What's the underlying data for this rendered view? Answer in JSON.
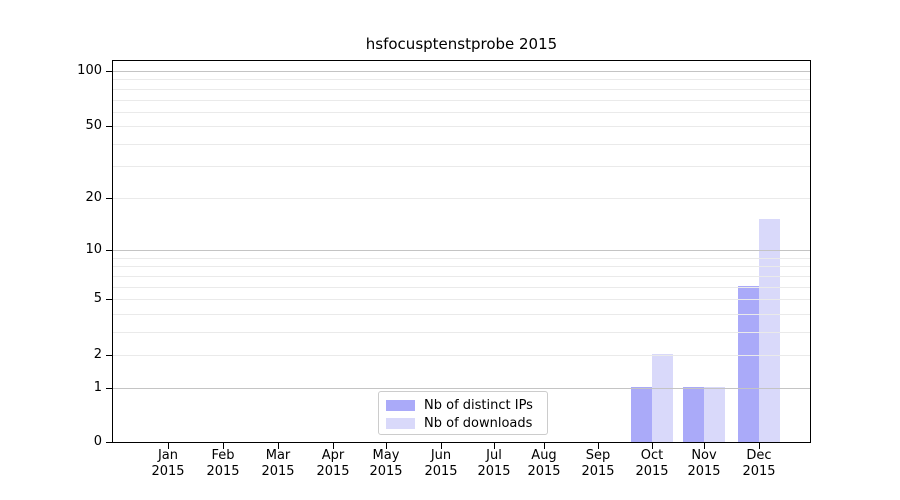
{
  "title": "hsfocusptenstprobe 2015",
  "chart_data": {
    "type": "bar",
    "title": "hsfocusptenstprobe 2015",
    "x_tick_labels": [
      {
        "month": "Jan",
        "year": "2015"
      },
      {
        "month": "Feb",
        "year": "2015"
      },
      {
        "month": "Mar",
        "year": "2015"
      },
      {
        "month": "Apr",
        "year": "2015"
      },
      {
        "month": "May",
        "year": "2015"
      },
      {
        "month": "Jun",
        "year": "2015"
      },
      {
        "month": "Jul",
        "year": "2015"
      },
      {
        "month": "Aug",
        "year": "2015"
      },
      {
        "month": "Sep",
        "year": "2015"
      },
      {
        "month": "Oct",
        "year": "2015"
      },
      {
        "month": "Nov",
        "year": "2015"
      },
      {
        "month": "Dec",
        "year": "2015"
      }
    ],
    "series": [
      {
        "name": "Nb of distinct IPs",
        "color": "#aaaaf9",
        "values": [
          0,
          0,
          0,
          0,
          0,
          0,
          0,
          0,
          0,
          1,
          1,
          6
        ]
      },
      {
        "name": "Nb of downloads",
        "color": "#d9d9fa",
        "values": [
          0,
          0,
          0,
          0,
          0,
          0,
          0,
          0,
          0,
          2,
          1,
          15
        ]
      }
    ],
    "y_axis": {
      "scale": "symlog (position proportional to log10(value+1))",
      "tick_values": [
        0,
        1,
        2,
        5,
        10,
        20,
        50,
        100
      ],
      "tick_labels": [
        "0",
        "1",
        "2",
        "5",
        "10",
        "20",
        "50",
        "100"
      ],
      "major_gridlines": [
        1,
        10,
        100
      ],
      "minor_gridlines": [
        2,
        3,
        4,
        5,
        6,
        7,
        8,
        9,
        20,
        30,
        40,
        50,
        60,
        70,
        80,
        90
      ],
      "ylim": [
        0,
        113
      ]
    },
    "legend_position": "lower center",
    "grid": "on"
  },
  "colors": {
    "bar_distinct_ips": "#aaaaf9",
    "bar_downloads": "#d9d9fa",
    "major_grid": "#c4c4c4",
    "minor_grid": "#eaeaea",
    "axis": "#000000",
    "legend_border": "#cccccc",
    "background": "#ffffff"
  }
}
